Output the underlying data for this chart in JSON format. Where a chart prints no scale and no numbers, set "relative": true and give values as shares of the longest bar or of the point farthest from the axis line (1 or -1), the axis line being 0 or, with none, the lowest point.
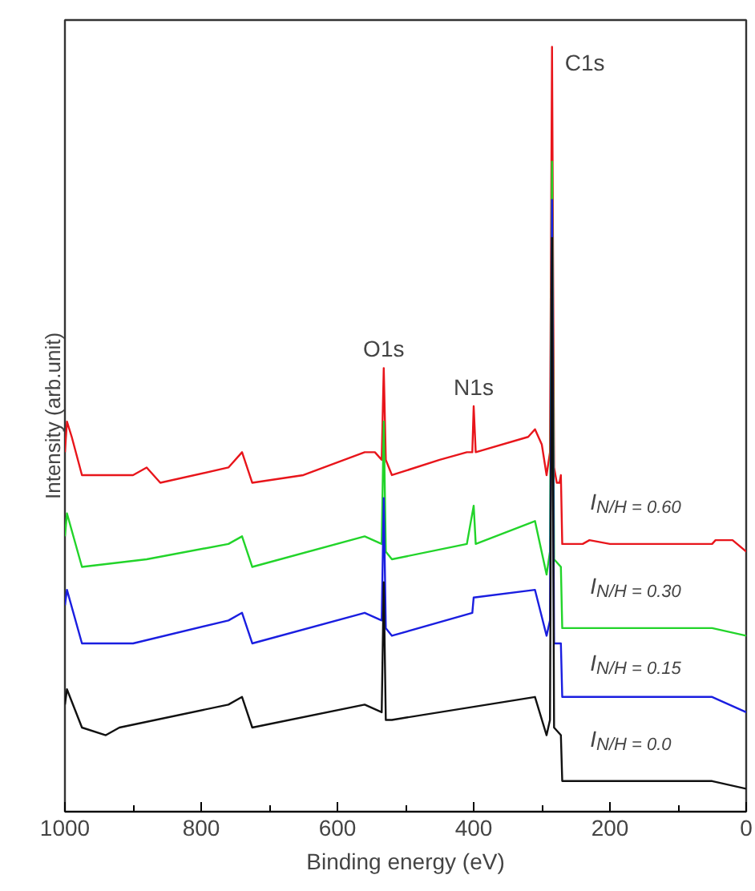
{
  "chart_data": {
    "type": "line",
    "relative": true,
    "xlabel": "Binding energy (eV)",
    "ylabel": "Intensity (arb.unit)",
    "xlim": [
      1000,
      0
    ],
    "xticks": [
      1000,
      800,
      600,
      400,
      200,
      0
    ],
    "grid": false,
    "marker": "none",
    "line_style": "solid",
    "annotations": [
      {
        "text": "C1s",
        "x": 285,
        "y": 1.0
      },
      {
        "text": "O1s",
        "x": 532,
        "y": 0.58
      },
      {
        "text": "N1s",
        "x": 400,
        "y": 0.53
      }
    ],
    "series": [
      {
        "name": "I$_{N/H = 0.60}$",
        "color": "#e8151b",
        "x": [
          1000,
          997,
          990,
          975,
          900,
          880,
          860,
          760,
          740,
          725,
          650,
          560,
          545,
          535,
          532,
          529,
          520,
          450,
          410,
          402,
          400,
          397,
          320,
          310,
          300,
          293,
          288,
          285,
          282,
          278,
          274,
          272,
          270,
          240,
          230,
          200,
          50,
          45,
          20,
          0
        ],
        "values": [
          0.47,
          0.51,
          0.49,
          0.44,
          0.44,
          0.45,
          0.43,
          0.45,
          0.47,
          0.43,
          0.44,
          0.47,
          0.47,
          0.46,
          0.58,
          0.46,
          0.44,
          0.46,
          0.47,
          0.47,
          0.53,
          0.47,
          0.49,
          0.5,
          0.48,
          0.44,
          0.47,
          1.0,
          0.45,
          0.43,
          0.43,
          0.44,
          0.35,
          0.35,
          0.355,
          0.35,
          0.35,
          0.355,
          0.355,
          0.34
        ]
      },
      {
        "name": "I$_{N/H = 0.30}$",
        "color": "#22d42a",
        "x": [
          1000,
          997,
          975,
          880,
          760,
          740,
          725,
          560,
          535,
          532,
          529,
          520,
          410,
          400,
          397,
          310,
          293,
          288,
          285,
          282,
          272,
          270,
          200,
          50,
          0
        ],
        "values": [
          0.36,
          0.39,
          0.32,
          0.33,
          0.35,
          0.36,
          0.32,
          0.36,
          0.35,
          0.51,
          0.34,
          0.33,
          0.35,
          0.4,
          0.35,
          0.38,
          0.31,
          0.34,
          0.85,
          0.33,
          0.32,
          0.24,
          0.24,
          0.24,
          0.23
        ]
      },
      {
        "name": "I$_{N/H = 0.15}$",
        "color": "#1a1ee0",
        "x": [
          1000,
          997,
          975,
          900,
          760,
          740,
          725,
          560,
          535,
          532,
          529,
          520,
          402,
          400,
          310,
          293,
          288,
          285,
          282,
          272,
          270,
          200,
          50,
          0
        ],
        "values": [
          0.27,
          0.29,
          0.22,
          0.22,
          0.25,
          0.26,
          0.22,
          0.26,
          0.25,
          0.41,
          0.24,
          0.23,
          0.26,
          0.28,
          0.29,
          0.23,
          0.25,
          0.8,
          0.22,
          0.22,
          0.15,
          0.15,
          0.15,
          0.13
        ]
      },
      {
        "name": "I$_{N/H = 0.0}$",
        "color": "#111111",
        "x": [
          1000,
          997,
          975,
          940,
          920,
          760,
          740,
          725,
          560,
          535,
          532,
          529,
          520,
          310,
          293,
          288,
          285,
          282,
          272,
          270,
          200,
          50,
          0
        ],
        "values": [
          0.14,
          0.16,
          0.11,
          0.1,
          0.11,
          0.14,
          0.15,
          0.11,
          0.14,
          0.13,
          0.3,
          0.12,
          0.12,
          0.15,
          0.1,
          0.12,
          0.75,
          0.11,
          0.1,
          0.04,
          0.04,
          0.04,
          0.03
        ]
      }
    ]
  }
}
